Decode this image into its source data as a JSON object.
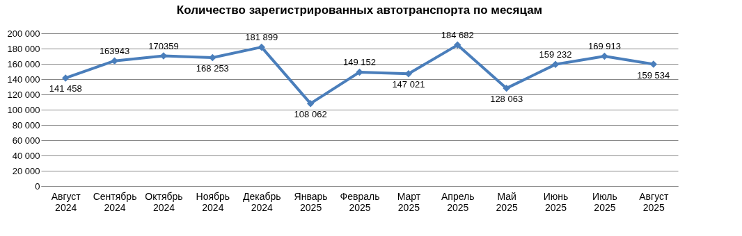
{
  "chart_data": {
    "type": "line",
    "title": "Количество зарегистрированных автотранспорта по месяцам",
    "categories": [
      "Август 2024",
      "Сентябрь 2024",
      "Октябрь 2024",
      "Ноябрь 2024",
      "Декабрь 2024",
      "Январь 2025",
      "Февраль 2025",
      "Март 2025",
      "Апрель 2025",
      "Май 2025",
      "Июнь 2025",
      "Июль 2025",
      "Август 2025"
    ],
    "series": [
      {
        "color": "#4a7ebb",
        "values": [
          141458,
          163943,
          170359,
          168253,
          181899,
          108062,
          149152,
          147021,
          184682,
          128063,
          159232,
          169913,
          159534
        ],
        "value_labels": [
          "141 458",
          "163943",
          "170359",
          "168 253",
          "181 899",
          "108 062",
          "149 152",
          "147 021",
          "184 682",
          "128 063",
          "159 232",
          "169 913",
          "159 534"
        ]
      }
    ],
    "ylim": [
      0,
      200000
    ],
    "yticks": [
      {
        "value": 0,
        "label": "0"
      },
      {
        "value": 20000,
        "label": "20 000"
      },
      {
        "value": 40000,
        "label": "40 000"
      },
      {
        "value": 60000,
        "label": "60 000"
      },
      {
        "value": 80000,
        "label": "80 000"
      },
      {
        "value": 100000,
        "label": "100 000"
      },
      {
        "value": 120000,
        "label": "120 000"
      },
      {
        "value": 140000,
        "label": "140 000"
      },
      {
        "value": 160000,
        "label": "160 000"
      },
      {
        "value": 180000,
        "label": "180 000"
      },
      {
        "value": 200000,
        "label": "200 000"
      }
    ],
    "grid": "y",
    "marker": "diamond",
    "line_style": "solid"
  }
}
